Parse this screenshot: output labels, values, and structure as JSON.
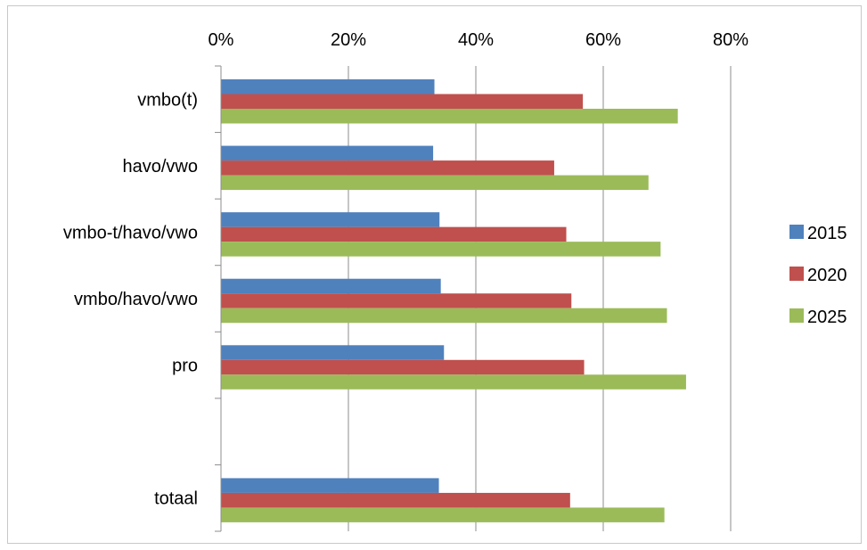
{
  "chart_data": {
    "type": "bar",
    "orientation": "horizontal",
    "title": "",
    "xlabel": "",
    "ylabel": "",
    "xlim": [
      0,
      80
    ],
    "x_ticks": [
      "0%",
      "20%",
      "40%",
      "60%",
      "80%"
    ],
    "x_tick_values": [
      0,
      20,
      40,
      60,
      80
    ],
    "x_axis_position": "top",
    "grid": "vertical",
    "legend_position": "right",
    "categories": [
      "vmbo(t)",
      "havo/vwo",
      "vmbo-t/havo/vwo",
      "vmbo/havo/vwo",
      "pro",
      "",
      "totaal"
    ],
    "series": [
      {
        "name": "2015",
        "color": "#4f81bd",
        "values": [
          33.5,
          33.3,
          34.3,
          34.5,
          35.0,
          null,
          34.2
        ]
      },
      {
        "name": "2020",
        "color": "#c0504d",
        "values": [
          56.8,
          52.3,
          54.2,
          55.0,
          57.0,
          null,
          54.8
        ]
      },
      {
        "name": "2025",
        "color": "#9bbb59",
        "values": [
          71.7,
          67.1,
          69.0,
          70.0,
          73.0,
          null,
          69.6
        ]
      }
    ]
  }
}
